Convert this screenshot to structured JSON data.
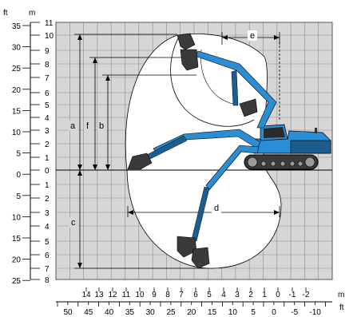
{
  "units": {
    "feet": "ft",
    "meters": "m"
  },
  "left_axis_m": [
    "11",
    "10",
    "9",
    "8",
    "7",
    "6",
    "5",
    "4",
    "3",
    "2",
    "1",
    "0",
    "1",
    "2",
    "3",
    "4",
    "5",
    "6",
    "7",
    "8"
  ],
  "left_axis_ft": [
    "35",
    "30",
    "25",
    "20",
    "15",
    "10",
    "5",
    "0",
    "5",
    "10",
    "15",
    "20",
    "25"
  ],
  "bottom_axis_m": [
    "14",
    "13",
    "12",
    "11",
    "10",
    "9",
    "8",
    "7",
    "6",
    "5",
    "4",
    "3",
    "2",
    "1",
    "0",
    "-1",
    "-2"
  ],
  "bottom_axis_ft": [
    "50",
    "45",
    "40",
    "35",
    "30",
    "25",
    "20",
    "15",
    "10",
    "5",
    "0",
    "-5",
    "-10"
  ],
  "dimension_labels": {
    "a": "a",
    "b": "b",
    "c": "c",
    "d": "d",
    "e": "e",
    "f": "f"
  },
  "colors": {
    "machine_blue": "#2b8ed4",
    "machine_dark": "#1d5e91",
    "grid_bg": "#d6d6d6",
    "grid_line": "#8a8a8a"
  }
}
